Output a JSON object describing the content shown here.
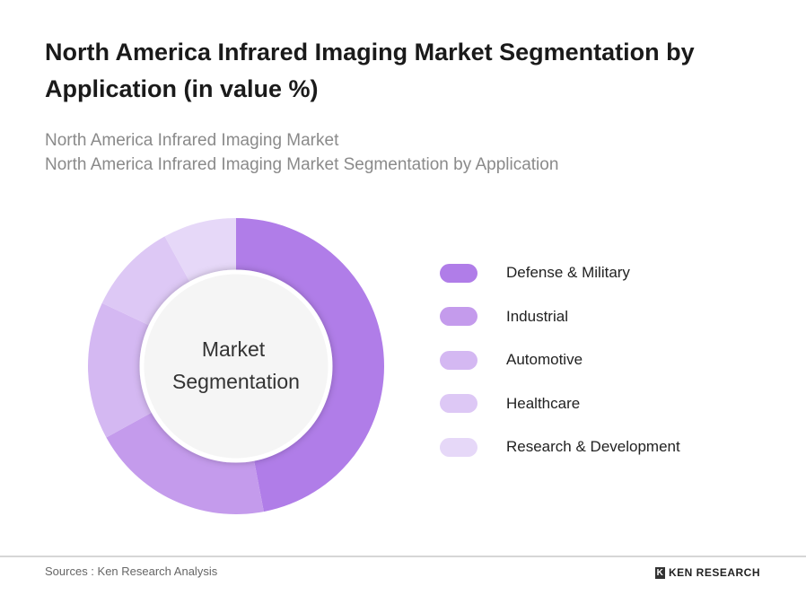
{
  "chart_data": {
    "type": "pie",
    "title": "North America Infrared Imaging Market Segmentation by Application (in value %)",
    "subtitle_1": "North America Infrared Imaging Market",
    "subtitle_2": "North America Infrared Imaging Market Segmentation by Application",
    "center_label_1": "Market",
    "center_label_2": "Segmentation",
    "categories": [
      "Defense & Military",
      "Industrial",
      "Automotive",
      "Healthcare",
      "Research & Development"
    ],
    "values": [
      47,
      20,
      15,
      10,
      8
    ],
    "colors": [
      "#b07de8",
      "#c49bec",
      "#d4b8f2",
      "#ddc8f5",
      "#e6d8f8"
    ],
    "legend_position": "right"
  },
  "footer": {
    "source": "Sources : Ken Research Analysis",
    "logo": "KEN RESEARCH"
  }
}
